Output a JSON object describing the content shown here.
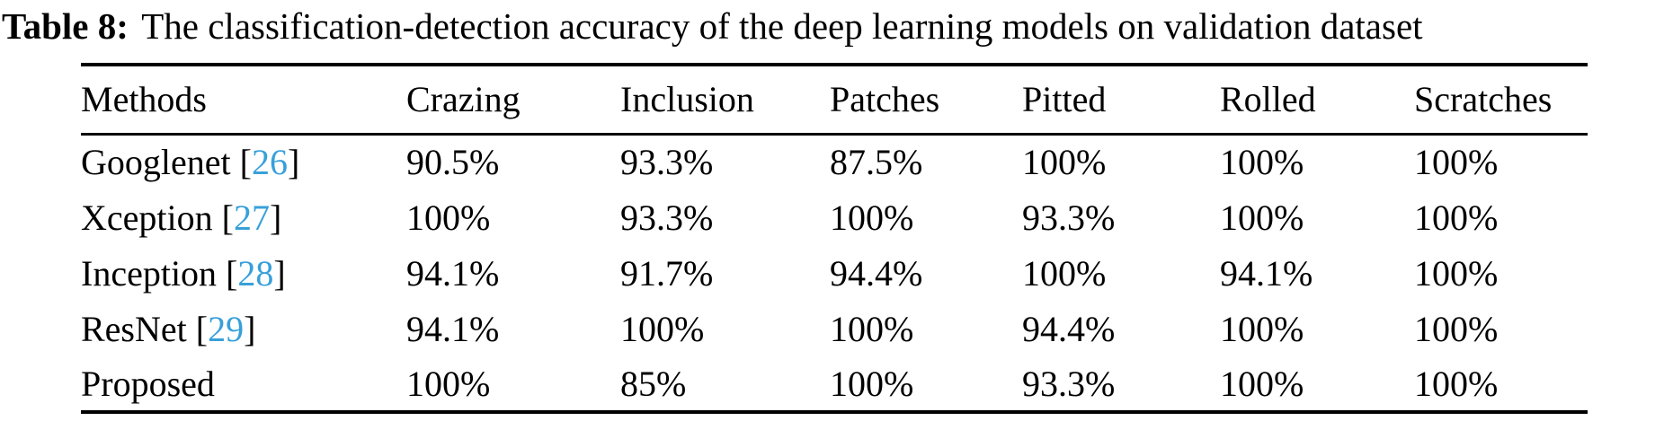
{
  "caption": {
    "tag": "Table 8:",
    "text": "The classification-detection accuracy of the deep learning models on validation dataset"
  },
  "colors": {
    "citation": "#38a0d9"
  },
  "table": {
    "headers": [
      "Methods",
      "Crazing",
      "Inclusion",
      "Patches",
      "Pitted",
      "Rolled",
      "Scratches"
    ],
    "rows": [
      {
        "method": "Googlenet",
        "cite_open": " [",
        "ref": "26",
        "cite_close": "]",
        "values": [
          "90.5%",
          "93.3%",
          "87.5%",
          "100%",
          "100%",
          "100%"
        ]
      },
      {
        "method": "Xception",
        "cite_open": " [",
        "ref": "27",
        "cite_close": "]",
        "values": [
          "100%",
          "93.3%",
          "100%",
          "93.3%",
          "100%",
          "100%"
        ]
      },
      {
        "method": "Inception",
        "cite_open": " [",
        "ref": "28",
        "cite_close": "]",
        "values": [
          "94.1%",
          "91.7%",
          "94.4%",
          "100%",
          "94.1%",
          "100%"
        ]
      },
      {
        "method": "ResNet",
        "cite_open": " [",
        "ref": "29",
        "cite_close": "]",
        "values": [
          "94.1%",
          "100%",
          "100%",
          "94.4%",
          "100%",
          "100%"
        ]
      },
      {
        "method": "Proposed",
        "values": [
          "100%",
          "85%",
          "100%",
          "93.3%",
          "100%",
          "100%"
        ]
      }
    ]
  }
}
